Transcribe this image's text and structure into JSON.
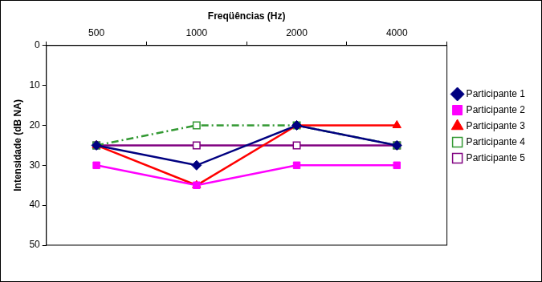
{
  "chart_data": {
    "type": "line",
    "x_label": "Freqüências (Hz)",
    "y_label": "Intensidade (dB NA)",
    "categories": [
      "500",
      "1000",
      "2000",
      "4000"
    ],
    "series": [
      {
        "name": "Participante 1",
        "color": "#000080",
        "marker": "diamond",
        "line_style": "solid",
        "values": [
          25,
          30,
          20,
          25
        ]
      },
      {
        "name": "Participante 2",
        "color": "#ff00ff",
        "marker": "square",
        "line_style": "solid",
        "values": [
          30,
          35,
          30,
          30
        ]
      },
      {
        "name": "Participante 3",
        "color": "#ff0000",
        "marker": "triangle",
        "line_style": "solid",
        "values": [
          25,
          35,
          20,
          20
        ]
      },
      {
        "name": "Participante 4",
        "color": "#339933",
        "marker": "open_square",
        "line_style": "dashdot",
        "values": [
          25,
          20,
          20,
          25
        ]
      },
      {
        "name": "Participante 5",
        "color": "#800080",
        "marker": "open_square",
        "line_style": "solid",
        "values": [
          25,
          25,
          25,
          25
        ]
      }
    ],
    "ylim": [
      50,
      0
    ],
    "yticks": [
      0,
      10,
      20,
      30,
      40,
      50
    ],
    "grid": false,
    "legend": "right"
  }
}
